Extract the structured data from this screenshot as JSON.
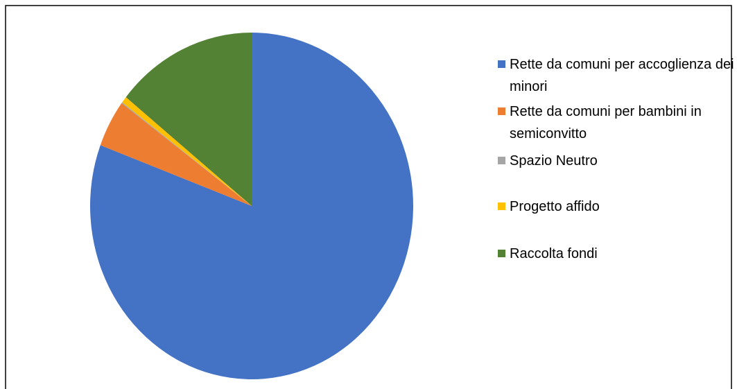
{
  "chart_data": {
    "type": "pie",
    "categories": [
      "Rette da comuni per accoglienza dei minori",
      "Rette da comuni per bambini in semiconvitto",
      "Spazio Neutro",
      "Progetto affido",
      "Raccolta fondi"
    ],
    "values": [
      80.7,
      4.4,
      0.1,
      0.6,
      14.2
    ],
    "colors": [
      "#4472c4",
      "#ed7d31",
      "#a5a5a5",
      "#ffc000",
      "#548235"
    ],
    "legend": "right"
  }
}
